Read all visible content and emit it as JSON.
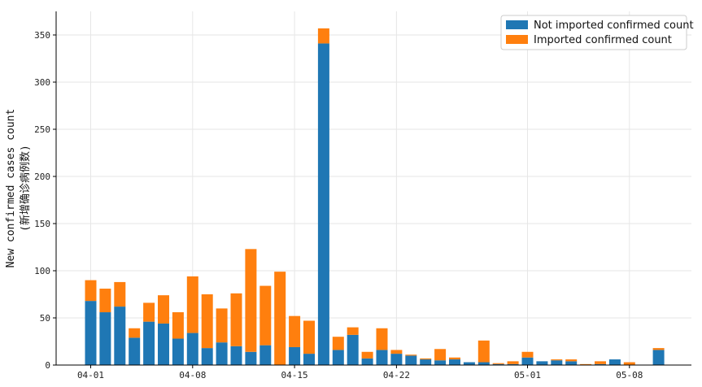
{
  "chart_data": {
    "type": "bar",
    "stacked": true,
    "categories": [
      "04-01",
      "04-02",
      "04-03",
      "04-04",
      "04-05",
      "04-06",
      "04-07",
      "04-08",
      "04-09",
      "04-10",
      "04-11",
      "04-12",
      "04-13",
      "04-14",
      "04-15",
      "04-16",
      "04-17",
      "04-18",
      "04-19",
      "04-20",
      "04-21",
      "04-22",
      "04-23",
      "04-24",
      "04-25",
      "04-26",
      "04-27",
      "04-28",
      "04-29",
      "04-30",
      "05-01",
      "05-02",
      "05-03",
      "05-04",
      "05-05",
      "05-06",
      "05-07",
      "05-08",
      "05-09",
      "05-10"
    ],
    "series": [
      {
        "name": "Not imported confirmed count",
        "color": "#1f77b4",
        "values": [
          68,
          56,
          62,
          29,
          46,
          44,
          28,
          34,
          18,
          24,
          20,
          14,
          21,
          0,
          19,
          12,
          341,
          16,
          32,
          7,
          16,
          12,
          10,
          6,
          5,
          6,
          3,
          3,
          1,
          1,
          8,
          4,
          5,
          4,
          0,
          1,
          6,
          0,
          0,
          16
        ]
      },
      {
        "name": "Imported confirmed count",
        "color": "#ff7f0e",
        "values": [
          22,
          25,
          26,
          10,
          20,
          30,
          28,
          60,
          57,
          36,
          56,
          109,
          63,
          99,
          33,
          35,
          16,
          14,
          8,
          7,
          23,
          4,
          1,
          1,
          12,
          2,
          0,
          23,
          1,
          3,
          6,
          0,
          1,
          2,
          1,
          3,
          0,
          3,
          0,
          2
        ]
      }
    ],
    "xticks": [
      "04-01",
      "04-08",
      "04-15",
      "04-22",
      "05-01",
      "05-08"
    ],
    "yticks": [
      0,
      50,
      100,
      150,
      200,
      250,
      300,
      350
    ],
    "ylim": [
      0,
      375
    ],
    "xlabel": "",
    "ylabel_line1": "New confirmed cases count",
    "ylabel_line2": "(新增确诊病例数)",
    "title": "",
    "grid": true,
    "legend_position": "top-right"
  }
}
